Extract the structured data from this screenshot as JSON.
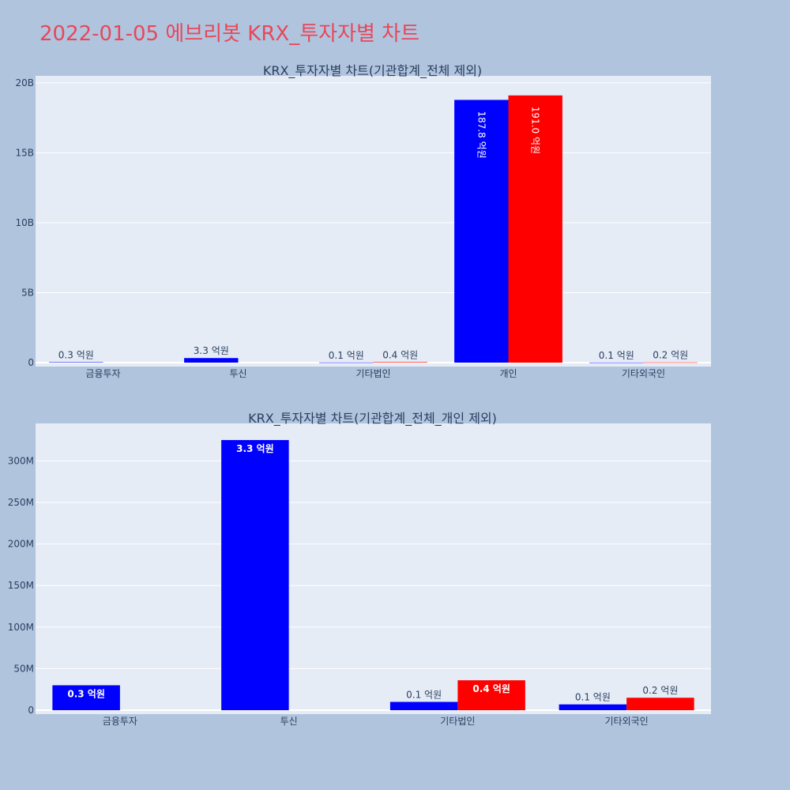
{
  "page": {
    "title": "2022-01-05 에브리봇 KRX_투자자별 차트"
  },
  "colors": {
    "background": "#b0c4de",
    "plot_bg": "#e5ecf6",
    "title": "#e8475a",
    "series_buy": "#0000ff",
    "series_sell": "#ff0000",
    "text": "#2a3f5f",
    "grid": "#ffffff"
  },
  "chart_data": [
    {
      "type": "bar",
      "title": "KRX_투자자별 차트(기관합계_전체 제외)",
      "categories": [
        "금융투자",
        "투신",
        "기타법인",
        "개인",
        "기타외국인"
      ],
      "ylim": [
        0,
        20500000000
      ],
      "yticks": [
        0,
        5000000000,
        10000000000,
        15000000000,
        20000000000
      ],
      "ytick_labels": [
        "0",
        "5B",
        "10B",
        "15B",
        "20B"
      ],
      "grid": true,
      "series": [
        {
          "color": "#0000ff",
          "values": [
            30000000,
            325000000,
            10000000,
            18780000000,
            7000000
          ],
          "labels": [
            "0.3 억원",
            "3.3 억원",
            "0.1 억원",
            "187.8 억원",
            "0.1 억원"
          ]
        },
        {
          "color": "#ff0000",
          "values": [
            0,
            0,
            36000000,
            19100000000,
            15000000
          ],
          "labels": [
            "",
            "",
            "0.4 억원",
            "191.0 억원",
            "0.2 억원"
          ]
        }
      ]
    },
    {
      "type": "bar",
      "title": "KRX_투자자별 차트(기관합계_전체_개인 제외)",
      "categories": [
        "금융투자",
        "투신",
        "기타법인",
        "기타외국인"
      ],
      "ylim": [
        0,
        345000000
      ],
      "yticks": [
        0,
        50000000,
        100000000,
        150000000,
        200000000,
        250000000,
        300000000
      ],
      "ytick_labels": [
        "0",
        "50M",
        "100M",
        "150M",
        "200M",
        "250M",
        "300M"
      ],
      "grid": true,
      "series": [
        {
          "color": "#0000ff",
          "values": [
            30000000,
            325000000,
            10000000,
            7000000
          ],
          "labels": [
            "0.3 억원",
            "3.3 억원",
            "0.1 억원",
            "0.1 억원"
          ]
        },
        {
          "color": "#ff0000",
          "values": [
            0,
            0,
            36000000,
            15000000
          ],
          "labels": [
            "",
            "",
            "0.4 억원",
            "0.2 억원"
          ]
        }
      ]
    }
  ]
}
